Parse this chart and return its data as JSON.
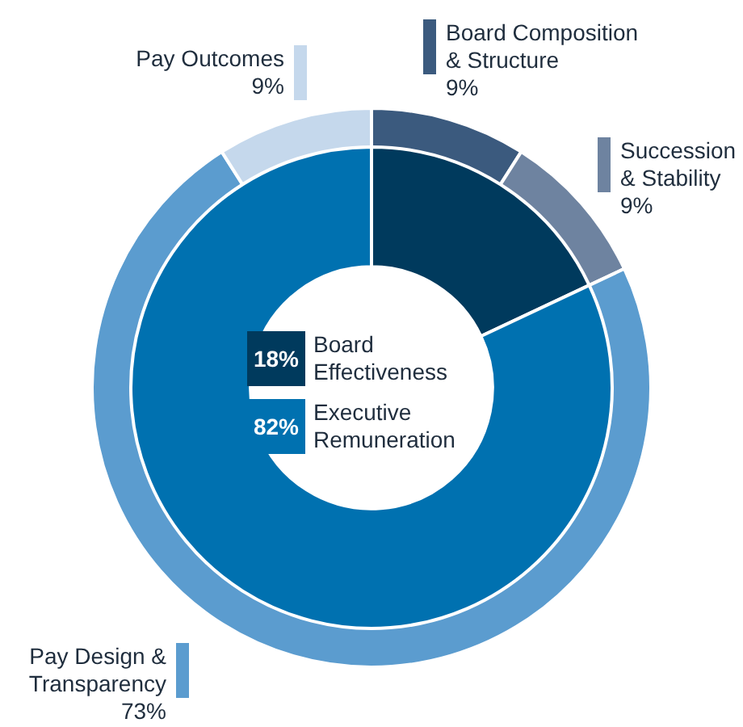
{
  "chart_data": [
    {
      "type": "donut",
      "categories": [
        "Board Composition & Structure",
        "Succession & Stability",
        "Pay Design & Transparency",
        "Pay Outcomes"
      ],
      "values": [
        9,
        9,
        73,
        9
      ],
      "colors": [
        "#3b5a7e",
        "#6e83a0",
        "#5b9ccf",
        "#c5d8ec"
      ],
      "value_labels": [
        "9%",
        "9%",
        "73%",
        "9%"
      ]
    },
    {
      "type": "donut",
      "categories": [
        "Board Effectiveness",
        "Executive Remuneration"
      ],
      "values": [
        18,
        82
      ],
      "colors": [
        "#003a5d",
        "#0071b0"
      ],
      "value_labels": [
        "18%",
        "82%"
      ]
    }
  ]
}
